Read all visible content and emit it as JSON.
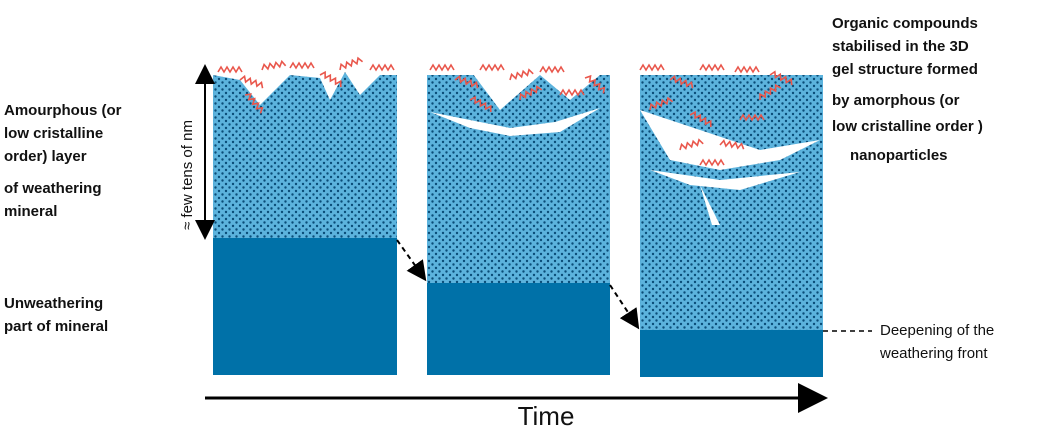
{
  "labels": {
    "amorphous_layer": [
      "Amourphous (or",
      "low cristalline",
      "order) layer",
      "of weathering",
      "mineral"
    ],
    "thickness": "≈ few tens of nm",
    "unweathering": [
      "Unweathering",
      "part of mineral"
    ],
    "organic": [
      "Organic compounds",
      "stabilised in the 3D",
      "gel structure formed",
      "by amorphous  (or",
      "low cristalline order )",
      "nanoparticles"
    ],
    "deepening": [
      "Deepening of  the",
      "weathering front"
    ],
    "time": "Time"
  }
}
